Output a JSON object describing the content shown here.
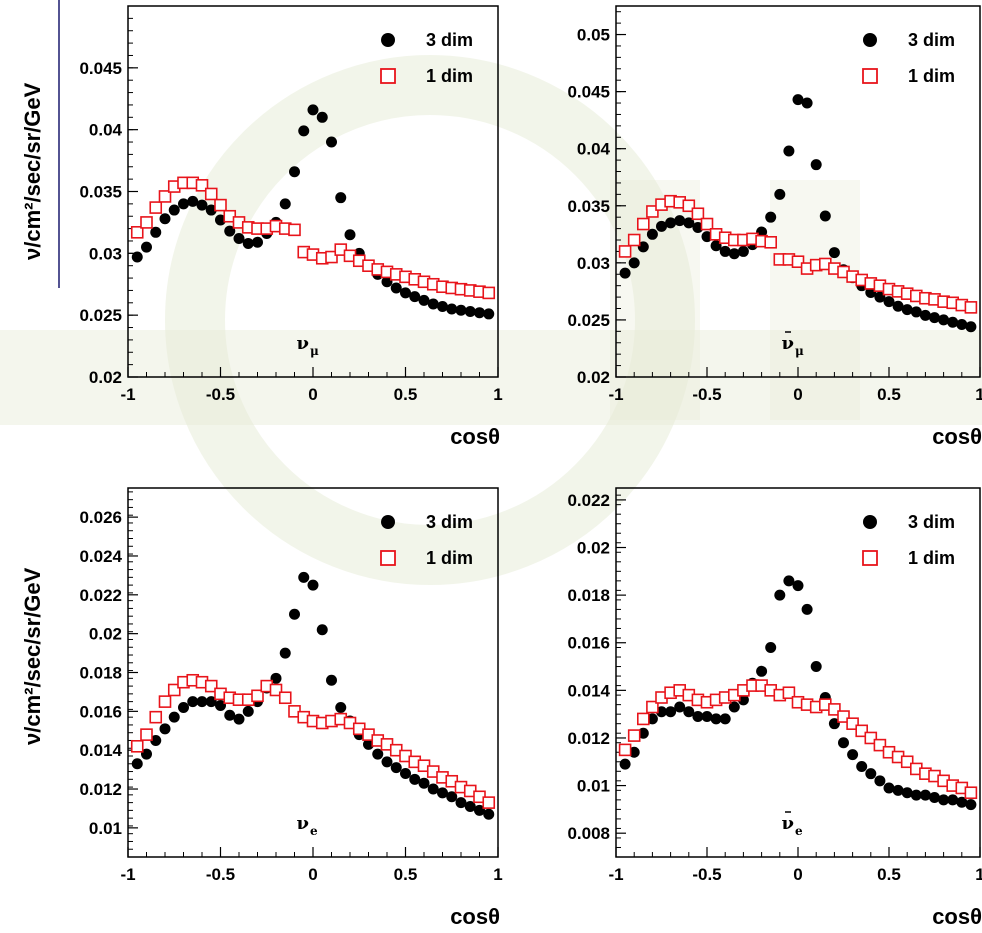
{
  "ylabel": "ν/cm²/sec/sr/GeV",
  "xlabel": "cosθ",
  "legend": {
    "series1": "3 dim",
    "series2": "1 dim"
  },
  "colors": {
    "series1": "#000000",
    "series2": "#e8141b",
    "watermark": "#e7ecd8"
  },
  "chart_data": [
    {
      "type": "scatter",
      "particle": "ν",
      "subscript": "μ",
      "bar": false,
      "xlabel": "cosθ",
      "xlim": [
        -1,
        1
      ],
      "ylim": [
        0.02,
        0.05
      ],
      "xticks": [
        "-1",
        "-0.5",
        "0",
        "0.5",
        "1"
      ],
      "yticks": [
        "0.02",
        "0.025",
        "0.03",
        "0.035",
        "0.04",
        "0.045"
      ],
      "series": [
        {
          "name": "3 dim",
          "x": [
            -0.95,
            -0.9,
            -0.85,
            -0.8,
            -0.75,
            -0.7,
            -0.65,
            -0.6,
            -0.55,
            -0.5,
            -0.45,
            -0.4,
            -0.35,
            -0.3,
            -0.25,
            -0.2,
            -0.15,
            -0.1,
            -0.05,
            0.0,
            0.05,
            0.1,
            0.15,
            0.2,
            0.25,
            0.3,
            0.35,
            0.4,
            0.45,
            0.5,
            0.55,
            0.6,
            0.65,
            0.7,
            0.75,
            0.8,
            0.85,
            0.9,
            0.95
          ],
          "y": [
            0.0297,
            0.0305,
            0.0317,
            0.0328,
            0.0335,
            0.034,
            0.0342,
            0.0339,
            0.0335,
            0.0327,
            0.0318,
            0.0312,
            0.0308,
            0.0309,
            0.0316,
            0.0325,
            0.034,
            0.0366,
            0.0399,
            0.0416,
            0.041,
            0.039,
            0.0345,
            0.0315,
            0.03,
            0.029,
            0.0283,
            0.0277,
            0.0272,
            0.0268,
            0.0265,
            0.0262,
            0.0259,
            0.0257,
            0.0255,
            0.0254,
            0.0253,
            0.0252,
            0.0251
          ]
        },
        {
          "name": "1 dim",
          "x": [
            -0.95,
            -0.9,
            -0.85,
            -0.8,
            -0.75,
            -0.7,
            -0.65,
            -0.6,
            -0.55,
            -0.5,
            -0.45,
            -0.4,
            -0.35,
            -0.3,
            -0.25,
            -0.2,
            -0.15,
            -0.1,
            -0.05,
            0.0,
            0.05,
            0.1,
            0.15,
            0.2,
            0.25,
            0.3,
            0.35,
            0.4,
            0.45,
            0.5,
            0.55,
            0.6,
            0.65,
            0.7,
            0.75,
            0.8,
            0.85,
            0.9,
            0.95
          ],
          "y": [
            0.0317,
            0.0325,
            0.0337,
            0.0346,
            0.0354,
            0.0357,
            0.0357,
            0.0355,
            0.0348,
            0.0339,
            0.033,
            0.0325,
            0.0321,
            0.032,
            0.032,
            0.0322,
            0.032,
            0.0319,
            0.0301,
            0.0299,
            0.0296,
            0.0297,
            0.0303,
            0.0298,
            0.0294,
            0.029,
            0.0287,
            0.0285,
            0.0283,
            0.0281,
            0.0279,
            0.0277,
            0.0275,
            0.0273,
            0.0272,
            0.0271,
            0.027,
            0.0269,
            0.0268
          ]
        }
      ]
    },
    {
      "type": "scatter",
      "particle": "ν",
      "subscript": "μ",
      "bar": true,
      "xlabel": "cosθ",
      "xlim": [
        -1,
        1
      ],
      "ylim": [
        0.02,
        0.0525
      ],
      "xticks": [
        "-1",
        "-0.5",
        "0",
        "0.5",
        "1"
      ],
      "yticks": [
        "0.02",
        "0.025",
        "0.03",
        "0.035",
        "0.04",
        "0.045",
        "0.05"
      ],
      "series": [
        {
          "name": "3 dim",
          "x": [
            -0.95,
            -0.9,
            -0.85,
            -0.8,
            -0.75,
            -0.7,
            -0.65,
            -0.6,
            -0.55,
            -0.5,
            -0.45,
            -0.4,
            -0.35,
            -0.3,
            -0.25,
            -0.2,
            -0.15,
            -0.1,
            -0.05,
            0.0,
            0.05,
            0.1,
            0.15,
            0.2,
            0.25,
            0.3,
            0.35,
            0.4,
            0.45,
            0.5,
            0.55,
            0.6,
            0.65,
            0.7,
            0.75,
            0.8,
            0.85,
            0.9,
            0.95
          ],
          "y": [
            0.0291,
            0.03,
            0.0314,
            0.0325,
            0.0332,
            0.0335,
            0.0337,
            0.0335,
            0.0331,
            0.0323,
            0.0315,
            0.031,
            0.0308,
            0.031,
            0.0316,
            0.0327,
            0.034,
            0.036,
            0.0398,
            0.0443,
            0.044,
            0.0386,
            0.0341,
            0.0309,
            0.0294,
            0.0287,
            0.028,
            0.0274,
            0.027,
            0.0266,
            0.0262,
            0.0259,
            0.0257,
            0.0254,
            0.0252,
            0.025,
            0.0248,
            0.0246,
            0.0244
          ]
        },
        {
          "name": "1 dim",
          "x": [
            -0.95,
            -0.9,
            -0.85,
            -0.8,
            -0.75,
            -0.7,
            -0.65,
            -0.6,
            -0.55,
            -0.5,
            -0.45,
            -0.4,
            -0.35,
            -0.3,
            -0.25,
            -0.2,
            -0.15,
            -0.1,
            -0.05,
            0.0,
            0.05,
            0.1,
            0.15,
            0.2,
            0.25,
            0.3,
            0.35,
            0.4,
            0.45,
            0.5,
            0.55,
            0.6,
            0.65,
            0.7,
            0.75,
            0.8,
            0.85,
            0.9,
            0.95
          ],
          "y": [
            0.031,
            0.032,
            0.0334,
            0.0345,
            0.0351,
            0.0354,
            0.0353,
            0.035,
            0.0343,
            0.0334,
            0.0325,
            0.0322,
            0.032,
            0.032,
            0.0321,
            0.0319,
            0.0318,
            0.0303,
            0.0303,
            0.0301,
            0.0295,
            0.0298,
            0.0299,
            0.0295,
            0.0292,
            0.0288,
            0.0285,
            0.0282,
            0.028,
            0.0277,
            0.0275,
            0.0273,
            0.0271,
            0.0269,
            0.0268,
            0.0266,
            0.0265,
            0.0263,
            0.0261
          ]
        }
      ]
    },
    {
      "type": "scatter",
      "particle": "ν",
      "subscript": "e",
      "bar": false,
      "xlabel": "cosθ",
      "xlim": [
        -1,
        1
      ],
      "ylim": [
        0.0085,
        0.0275
      ],
      "xticks": [
        "-1",
        "-0.5",
        "0",
        "0.5",
        "1"
      ],
      "yticks": [
        "0.01",
        "0.012",
        "0.014",
        "0.016",
        "0.018",
        "0.02",
        "0.022",
        "0.024",
        "0.026"
      ],
      "series": [
        {
          "name": "3 dim",
          "x": [
            -0.95,
            -0.9,
            -0.85,
            -0.8,
            -0.75,
            -0.7,
            -0.65,
            -0.6,
            -0.55,
            -0.5,
            -0.45,
            -0.4,
            -0.35,
            -0.3,
            -0.25,
            -0.2,
            -0.15,
            -0.1,
            -0.05,
            0.0,
            0.05,
            0.1,
            0.15,
            0.2,
            0.25,
            0.3,
            0.35,
            0.4,
            0.45,
            0.5,
            0.55,
            0.6,
            0.65,
            0.7,
            0.75,
            0.8,
            0.85,
            0.9,
            0.95
          ],
          "y": [
            0.0133,
            0.0138,
            0.0145,
            0.0151,
            0.0157,
            0.0162,
            0.0165,
            0.0165,
            0.0165,
            0.0163,
            0.0158,
            0.0156,
            0.016,
            0.0165,
            0.0172,
            0.0177,
            0.019,
            0.021,
            0.0229,
            0.0225,
            0.0202,
            0.0176,
            0.0162,
            0.0155,
            0.0148,
            0.0143,
            0.0138,
            0.0134,
            0.0131,
            0.0128,
            0.0125,
            0.0123,
            0.012,
            0.0118,
            0.0116,
            0.0113,
            0.0111,
            0.0109,
            0.0107
          ]
        },
        {
          "name": "1 dim",
          "x": [
            -0.95,
            -0.9,
            -0.85,
            -0.8,
            -0.75,
            -0.7,
            -0.65,
            -0.6,
            -0.55,
            -0.5,
            -0.45,
            -0.4,
            -0.35,
            -0.3,
            -0.25,
            -0.2,
            -0.15,
            -0.1,
            -0.05,
            0.0,
            0.05,
            0.1,
            0.15,
            0.2,
            0.25,
            0.3,
            0.35,
            0.4,
            0.45,
            0.5,
            0.55,
            0.6,
            0.65,
            0.7,
            0.75,
            0.8,
            0.85,
            0.9,
            0.95
          ],
          "y": [
            0.0142,
            0.0148,
            0.0157,
            0.0165,
            0.0171,
            0.0175,
            0.0176,
            0.0175,
            0.0173,
            0.0169,
            0.0167,
            0.0166,
            0.0166,
            0.0168,
            0.0173,
            0.0171,
            0.0167,
            0.016,
            0.0157,
            0.0155,
            0.0154,
            0.0155,
            0.0156,
            0.0154,
            0.0151,
            0.0148,
            0.0145,
            0.0143,
            0.014,
            0.0137,
            0.0134,
            0.0132,
            0.0129,
            0.0126,
            0.0124,
            0.0121,
            0.0119,
            0.0116,
            0.0113
          ]
        }
      ]
    },
    {
      "type": "scatter",
      "particle": "ν",
      "subscript": "e",
      "bar": true,
      "xlabel": "cosθ",
      "xlim": [
        -1,
        1
      ],
      "ylim": [
        0.007,
        0.0225
      ],
      "xticks": [
        "-1",
        "-0.5",
        "0",
        "0.5",
        "1"
      ],
      "yticks": [
        "0.008",
        "0.01",
        "0.012",
        "0.014",
        "0.016",
        "0.018",
        "0.02",
        "0.022"
      ],
      "series": [
        {
          "name": "3 dim",
          "x": [
            -0.95,
            -0.9,
            -0.85,
            -0.8,
            -0.75,
            -0.7,
            -0.65,
            -0.6,
            -0.55,
            -0.5,
            -0.45,
            -0.4,
            -0.35,
            -0.3,
            -0.25,
            -0.2,
            -0.15,
            -0.1,
            -0.05,
            0.0,
            0.05,
            0.1,
            0.15,
            0.2,
            0.25,
            0.3,
            0.35,
            0.4,
            0.45,
            0.5,
            0.55,
            0.6,
            0.65,
            0.7,
            0.75,
            0.8,
            0.85,
            0.9,
            0.95
          ],
          "y": [
            0.0109,
            0.0114,
            0.0122,
            0.0128,
            0.0131,
            0.0131,
            0.0133,
            0.0131,
            0.0129,
            0.0129,
            0.0128,
            0.0128,
            0.0133,
            0.0136,
            0.0143,
            0.0148,
            0.0158,
            0.018,
            0.0186,
            0.0184,
            0.0174,
            0.015,
            0.0137,
            0.0126,
            0.0118,
            0.0113,
            0.0108,
            0.0105,
            0.0102,
            0.0099,
            0.0098,
            0.0097,
            0.0096,
            0.0096,
            0.0095,
            0.0094,
            0.0094,
            0.0093,
            0.0092
          ]
        },
        {
          "name": "1 dim",
          "x": [
            -0.95,
            -0.9,
            -0.85,
            -0.8,
            -0.75,
            -0.7,
            -0.65,
            -0.6,
            -0.55,
            -0.5,
            -0.45,
            -0.4,
            -0.35,
            -0.3,
            -0.25,
            -0.2,
            -0.15,
            -0.1,
            -0.05,
            0.0,
            0.05,
            0.1,
            0.15,
            0.2,
            0.25,
            0.3,
            0.35,
            0.4,
            0.45,
            0.5,
            0.55,
            0.6,
            0.65,
            0.7,
            0.75,
            0.8,
            0.85,
            0.9,
            0.95
          ],
          "y": [
            0.0115,
            0.0121,
            0.0128,
            0.0133,
            0.0137,
            0.0139,
            0.014,
            0.0138,
            0.0136,
            0.0135,
            0.0136,
            0.0137,
            0.0138,
            0.014,
            0.0142,
            0.0142,
            0.014,
            0.0138,
            0.0139,
            0.0135,
            0.0134,
            0.0133,
            0.0134,
            0.0132,
            0.0129,
            0.0126,
            0.0123,
            0.012,
            0.0117,
            0.0114,
            0.0112,
            0.011,
            0.0107,
            0.0105,
            0.0104,
            0.0102,
            0.01,
            0.0099,
            0.0097
          ]
        }
      ]
    }
  ]
}
